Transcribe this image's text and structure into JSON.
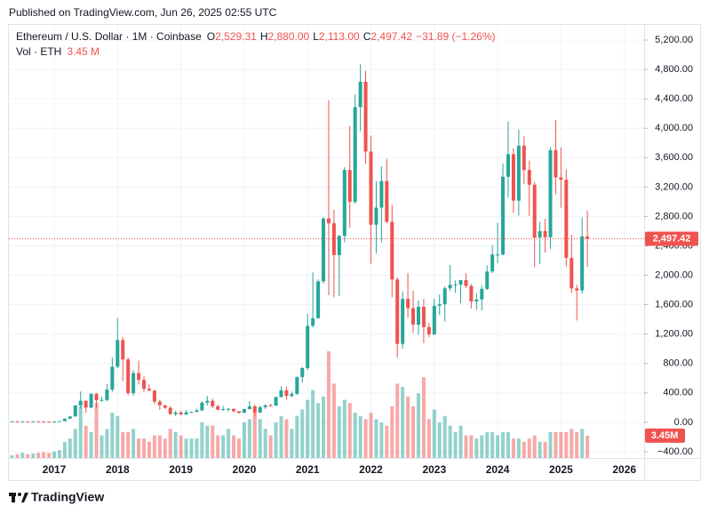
{
  "header": {
    "published": "Published on TradingView.com, Jun 26, 2025 02:55 UTC",
    "brand": "TradingView"
  },
  "legend": {
    "symbol": "Ethereum / U.S. Dollar · 1M · Coinbase",
    "ohlc_letters": [
      "O",
      "H",
      "L",
      "C"
    ],
    "ohlc_values": [
      "2,529.31",
      "2,880.00",
      "2,113.00",
      "2,497.42"
    ],
    "change": "−31.89 (−1.26%)",
    "volume_name": "Vol · ETH",
    "volume_value": "3.45 M"
  },
  "chart_data": {
    "type": "candlestick",
    "x": [
      "2016-05",
      "2016-06",
      "2016-07",
      "2016-08",
      "2016-09",
      "2016-10",
      "2016-11",
      "2016-12",
      "2017-01",
      "2017-02",
      "2017-03",
      "2017-04",
      "2017-05",
      "2017-06",
      "2017-07",
      "2017-08",
      "2017-09",
      "2017-10",
      "2017-11",
      "2017-12",
      "2018-01",
      "2018-02",
      "2018-03",
      "2018-04",
      "2018-05",
      "2018-06",
      "2018-07",
      "2018-08",
      "2018-09",
      "2018-10",
      "2018-11",
      "2018-12",
      "2019-01",
      "2019-02",
      "2019-03",
      "2019-04",
      "2019-05",
      "2019-06",
      "2019-07",
      "2019-08",
      "2019-09",
      "2019-10",
      "2019-11",
      "2019-12",
      "2020-01",
      "2020-02",
      "2020-03",
      "2020-04",
      "2020-05",
      "2020-06",
      "2020-07",
      "2020-08",
      "2020-09",
      "2020-10",
      "2020-11",
      "2020-12",
      "2021-01",
      "2021-02",
      "2021-03",
      "2021-04",
      "2021-05",
      "2021-06",
      "2021-07",
      "2021-08",
      "2021-09",
      "2021-10",
      "2021-11",
      "2021-12",
      "2022-01",
      "2022-02",
      "2022-03",
      "2022-04",
      "2022-05",
      "2022-06",
      "2022-07",
      "2022-08",
      "2022-09",
      "2022-10",
      "2022-11",
      "2022-12",
      "2023-01",
      "2023-02",
      "2023-03",
      "2023-04",
      "2023-05",
      "2023-06",
      "2023-07",
      "2023-08",
      "2023-09",
      "2023-10",
      "2023-11",
      "2023-12",
      "2024-01",
      "2024-02",
      "2024-03",
      "2024-04",
      "2024-05",
      "2024-06",
      "2024-07",
      "2024-08",
      "2024-09",
      "2024-10",
      "2024-11",
      "2024-12",
      "2025-01",
      "2025-02",
      "2025-03",
      "2025-04",
      "2025-05",
      "2025-06"
    ],
    "open": [
      11.3,
      14,
      12.3,
      12.6,
      11.5,
      13.2,
      11,
      8.6,
      8,
      10.7,
      16,
      50,
      80,
      230,
      293,
      201,
      388,
      302,
      305,
      445,
      756,
      1118,
      855,
      396,
      670,
      577,
      455,
      433,
      283,
      232,
      197,
      113,
      133,
      107,
      136,
      141,
      162,
      268,
      293,
      218,
      172,
      180,
      182,
      151,
      130,
      180,
      217,
      133,
      206,
      231,
      226,
      345,
      435,
      360,
      386,
      615,
      737,
      1314,
      1416,
      1918,
      2773,
      2707,
      2275,
      2536,
      3433,
      3000,
      4288,
      4632,
      3683,
      2688,
      2920,
      3283,
      2727,
      1942,
      1067,
      1679,
      1553,
      1328,
      1572,
      1295,
      1196,
      1585,
      1605,
      1822,
      1870,
      1874,
      1934,
      1856,
      1645,
      1671,
      1815,
      2052,
      2282,
      2283,
      3340,
      3647,
      3015,
      3763,
      3433,
      3232,
      2513,
      2602,
      2517,
      3703,
      3332,
      3300,
      2237,
      1822,
      1794,
      2529.31
    ],
    "high": [
      14.8,
      21.5,
      14.9,
      12.6,
      14.3,
      14.2,
      11.3,
      9,
      11.5,
      16.6,
      55,
      82,
      232,
      420,
      294,
      394,
      400,
      350,
      520,
      880,
      1420,
      1161,
      880,
      710,
      838,
      626,
      515,
      435,
      307,
      236,
      220,
      158,
      160,
      166,
      145,
      185,
      286,
      362,
      320,
      240,
      223,
      198,
      192,
      152,
      184,
      288,
      240,
      227,
      247,
      252,
      348,
      488,
      488,
      420,
      623,
      755,
      1475,
      2040,
      1945,
      2790,
      4380,
      2890,
      2550,
      3470,
      4030,
      4460,
      4870,
      4780,
      3900,
      3280,
      3480,
      3580,
      2960,
      1970,
      1780,
      2030,
      1790,
      1660,
      1680,
      1350,
      1680,
      1740,
      1850,
      2140,
      1930,
      1935,
      2030,
      1880,
      1750,
      1865,
      2135,
      2410,
      2715,
      3520,
      4090,
      3730,
      3980,
      3890,
      3560,
      3270,
      2730,
      2770,
      3740,
      4110,
      3740,
      3440,
      2550,
      1870,
      2790,
      2880
    ],
    "low": [
      8.9,
      11.5,
      9.8,
      10.3,
      11.4,
      10.5,
      7.8,
      6.3,
      7.9,
      10.3,
      15.5,
      43,
      78,
      190,
      130,
      190,
      198,
      282,
      285,
      416,
      735,
      565,
      368,
      364,
      517,
      414,
      422,
      250,
      167,
      182,
      101,
      82,
      101,
      102,
      129,
      141,
      154,
      230,
      190,
      161,
      153,
      150,
      137,
      116,
      127,
      175,
      87,
      127,
      180,
      215,
      223,
      335,
      310,
      335,
      370,
      540,
      715,
      1290,
      1410,
      1885,
      1730,
      1700,
      1718,
      2450,
      2650,
      2970,
      3960,
      3520,
      2160,
      2300,
      2450,
      2710,
      1700,
      880,
      1000,
      1420,
      1220,
      1190,
      1075,
      1160,
      1190,
      1460,
      1370,
      1785,
      1760,
      1620,
      1825,
      1550,
      1530,
      1520,
      1800,
      2030,
      2165,
      2270,
      3060,
      2850,
      2810,
      3240,
      2810,
      2110,
      2150,
      2310,
      2360,
      3100,
      2920,
      2120,
      1760,
      1385,
      1750,
      2113
    ],
    "close": [
      14,
      12.3,
      12.6,
      11.5,
      13.2,
      11,
      8.6,
      8,
      10.7,
      16,
      50,
      80,
      230,
      293,
      201,
      388,
      302,
      305,
      445,
      756,
      1118,
      855,
      396,
      670,
      577,
      455,
      433,
      283,
      232,
      197,
      113,
      133,
      107,
      136,
      141,
      162,
      268,
      293,
      218,
      172,
      180,
      182,
      151,
      130,
      180,
      217,
      133,
      206,
      231,
      226,
      345,
      435,
      360,
      386,
      615,
      737,
      1314,
      1416,
      1918,
      2773,
      2707,
      2275,
      2536,
      3433,
      3000,
      4288,
      4632,
      3683,
      2688,
      2920,
      3283,
      2727,
      1942,
      1067,
      1679,
      1553,
      1328,
      1572,
      1295,
      1196,
      1585,
      1605,
      1822,
      1870,
      1874,
      1934,
      1856,
      1645,
      1671,
      1815,
      2052,
      2282,
      2283,
      3340,
      3647,
      3015,
      3763,
      3433,
      3232,
      2513,
      2602,
      2517,
      3703,
      3332,
      3300,
      2237,
      1822,
      1794,
      2529.31,
      2497.42
    ],
    "volume": [
      0.4,
      0.6,
      0.8,
      0.6,
      0.7,
      0.8,
      0.9,
      0.8,
      1,
      1.2,
      2.5,
      3,
      4.5,
      8,
      5,
      4,
      8.5,
      3.5,
      4.5,
      7,
      6.5,
      4,
      4,
      4.5,
      3,
      3,
      2.5,
      3.5,
      3.5,
      3,
      4.5,
      4,
      3.5,
      3,
      3,
      3,
      5.5,
      5,
      5,
      3.5,
      3.5,
      4.5,
      3.5,
      3,
      5.5,
      6,
      7,
      6,
      4.5,
      3.5,
      5.5,
      6.5,
      6,
      4.5,
      6.5,
      7.5,
      9,
      10.5,
      8.5,
      9.5,
      16.5,
      11.5,
      8,
      9,
      8.5,
      7,
      6.5,
      6,
      7,
      6,
      5.5,
      5,
      8,
      11.5,
      11,
      9.5,
      8,
      10,
      12.5,
      6,
      7.5,
      5.5,
      6.5,
      5,
      4,
      5,
      3.5,
      3.5,
      3,
      3.5,
      4,
      4,
      3.5,
      4,
      4,
      3,
      3,
      2.5,
      3,
      3.5,
      2.5,
      2.5,
      4,
      4,
      4,
      4,
      4.5,
      4,
      4.5,
      3.45
    ],
    "last_price_label": "2,497.42",
    "last_volume_label": "3.45M",
    "up_color": "#26a69a",
    "down_color": "#ef5350",
    "grid": true,
    "ylim": [
      -485,
      5406
    ],
    "y2lim": [
      0,
      67
    ],
    "yticks": [
      {
        "value": -400,
        "label": "−400.00"
      },
      {
        "value": 0,
        "label": "0.00"
      },
      {
        "value": 400,
        "label": "400.00"
      },
      {
        "value": 800,
        "label": "800.00"
      },
      {
        "value": 1200,
        "label": "1,200.00"
      },
      {
        "value": 1600,
        "label": "1,600.00"
      },
      {
        "value": 2000,
        "label": "2,000.00"
      },
      {
        "value": 2400,
        "label": "2,400.00"
      },
      {
        "value": 2800,
        "label": "2,800.00"
      },
      {
        "value": 3200,
        "label": "3,200.00"
      },
      {
        "value": 3600,
        "label": "3,600.00"
      },
      {
        "value": 4000,
        "label": "4,000.00"
      },
      {
        "value": 4400,
        "label": "4,400.00"
      },
      {
        "value": 4800,
        "label": "4,800.00"
      },
      {
        "value": 5200,
        "label": "5,200.00"
      }
    ],
    "xticks": [
      "2017",
      "2018",
      "2019",
      "2020",
      "2021",
      "2022",
      "2023",
      "2024",
      "2025",
      "2026"
    ]
  }
}
